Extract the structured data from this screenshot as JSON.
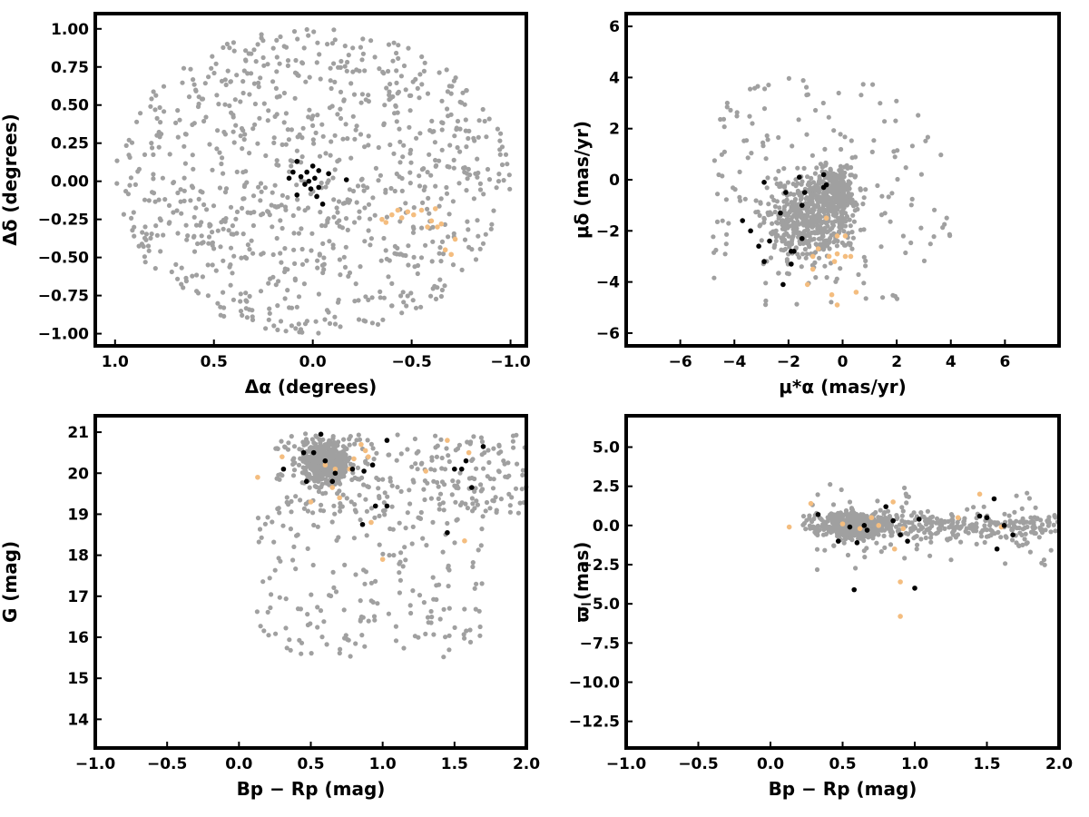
{
  "colors": {
    "field": "#a0a0a0",
    "cluster": "#000000",
    "group2": "#f4bd7f",
    "axes": "#000000"
  },
  "chart_data": [
    {
      "type": "scatter",
      "xlabel": "Δα (degrees)",
      "ylabel": "Δδ (degrees)",
      "xlim": [
        1.1,
        -1.08
      ],
      "ylim": [
        -1.08,
        1.1
      ],
      "xticks": [
        1.0,
        0.5,
        0.0,
        -0.5,
        -1.0
      ],
      "xtick_labels": [
        "1.0",
        "0.5",
        "0.0",
        "−0.5",
        "−1.0"
      ],
      "yticks": [
        -1.0,
        -0.75,
        -0.5,
        -0.25,
        0.0,
        0.25,
        0.5,
        0.75,
        1.0
      ],
      "ytick_labels": [
        "−1.00",
        "−0.75",
        "−0.50",
        "−0.25",
        "0.00",
        "0.25",
        "0.50",
        "0.75",
        "1.00"
      ],
      "field_approx": {
        "count": 900,
        "distribution": "uniform within radius 1.0"
      },
      "cluster_points": [
        [
          0.12,
          0.02
        ],
        [
          0.1,
          0.06
        ],
        [
          0.08,
          0.13
        ],
        [
          0.06,
          0.03
        ],
        [
          0.04,
          -0.02
        ],
        [
          0.03,
          0.06
        ],
        [
          0.02,
          0.0
        ],
        [
          0.01,
          -0.05
        ],
        [
          0.0,
          0.1
        ],
        [
          -0.01,
          0.02
        ],
        [
          -0.02,
          -0.1
        ],
        [
          -0.03,
          0.07
        ],
        [
          -0.03,
          -0.04
        ],
        [
          -0.05,
          -0.15
        ],
        [
          -0.08,
          0.05
        ],
        [
          0.08,
          -0.09
        ],
        [
          -0.17,
          0.01
        ]
      ],
      "group2_points": [
        [
          -0.35,
          -0.25
        ],
        [
          -0.37,
          -0.27
        ],
        [
          -0.4,
          -0.22
        ],
        [
          -0.43,
          -0.19
        ],
        [
          -0.48,
          -0.2
        ],
        [
          -0.51,
          -0.22
        ],
        [
          -0.55,
          -0.19
        ],
        [
          -0.58,
          -0.3
        ],
        [
          -0.6,
          -0.26
        ],
        [
          -0.62,
          -0.18
        ],
        [
          -0.63,
          -0.3
        ],
        [
          -0.65,
          -0.28
        ],
        [
          -0.67,
          -0.45
        ],
        [
          -0.7,
          -0.48
        ],
        [
          -0.72,
          -0.38
        ],
        [
          -0.45,
          -0.24
        ]
      ]
    },
    {
      "type": "scatter",
      "xlabel": "μ*α  (mas/yr)",
      "ylabel": "μδ (mas/yr)",
      "xlim": [
        -8.0,
        8.0
      ],
      "ylim": [
        -6.5,
        6.5
      ],
      "xticks": [
        -6,
        -4,
        -2,
        0,
        2,
        4,
        6
      ],
      "xtick_labels": [
        "−6",
        "−4",
        "−2",
        "0",
        "2",
        "4",
        "6"
      ],
      "yticks": [
        -6,
        -4,
        -2,
        0,
        2,
        4,
        6
      ],
      "ytick_labels": [
        "−6",
        "−4",
        "−2",
        "0",
        "2",
        "4",
        "6"
      ],
      "field_approx": {
        "count": 900,
        "distribution": "fan-shaped cloud centred near (-1.5,-1.5)"
      },
      "cluster_points": [
        [
          -3.7,
          -1.6
        ],
        [
          -3.4,
          -2.0
        ],
        [
          -3.1,
          -2.6
        ],
        [
          -2.9,
          -3.2
        ],
        [
          -2.7,
          -2.4
        ],
        [
          -2.3,
          -1.3
        ],
        [
          -2.2,
          -4.1
        ],
        [
          -2.1,
          -0.5
        ],
        [
          -1.9,
          -3.3
        ],
        [
          -1.8,
          -2.8
        ],
        [
          -1.6,
          0.1
        ],
        [
          -1.5,
          -1.0
        ],
        [
          -1.5,
          -2.3
        ],
        [
          -1.4,
          -0.5
        ],
        [
          -0.7,
          0.2
        ],
        [
          -0.7,
          -0.3
        ],
        [
          -0.6,
          -0.2
        ],
        [
          -2.9,
          -0.1
        ],
        [
          -1.9,
          -2.8
        ]
      ],
      "group2_points": [
        [
          -1.3,
          -4.1
        ],
        [
          -1.1,
          -3.0
        ],
        [
          -0.9,
          -2.7
        ],
        [
          -0.6,
          -1.5
        ],
        [
          -0.5,
          -3.0
        ],
        [
          -0.4,
          -4.5
        ],
        [
          -0.3,
          -3.2
        ],
        [
          -0.2,
          -2.9
        ],
        [
          -0.2,
          -4.9
        ],
        [
          0.1,
          -2.2
        ],
        [
          0.1,
          -3.0
        ],
        [
          0.3,
          -3.0
        ],
        [
          0.5,
          -4.4
        ],
        [
          -1.1,
          -3.5
        ],
        [
          -0.2,
          -2.2
        ]
      ]
    },
    {
      "type": "scatter",
      "xlabel": "Bp − Rp (mag)",
      "ylabel": "G (mag)",
      "xlim": [
        -1.0,
        2.0
      ],
      "ylim": [
        13.3,
        21.4
      ],
      "xticks": [
        -1.0,
        -0.5,
        0.0,
        0.5,
        1.0,
        1.5,
        2.0
      ],
      "xtick_labels": [
        "−1.0",
        "−0.5",
        "0.0",
        "0.5",
        "1.0",
        "1.5",
        "2.0"
      ],
      "yticks": [
        14,
        15,
        16,
        17,
        18,
        19,
        20,
        21
      ],
      "ytick_labels": [
        "14",
        "15",
        "16",
        "17",
        "18",
        "19",
        "20",
        "21"
      ],
      "field_approx": {
        "count": 900,
        "distribution": "dense near (0.6, 20.3), tail toward faint red"
      },
      "cluster_points": [
        [
          0.31,
          20.1
        ],
        [
          0.45,
          20.5
        ],
        [
          0.52,
          20.5
        ],
        [
          0.57,
          20.95
        ],
        [
          0.6,
          20.3
        ],
        [
          0.65,
          19.8
        ],
        [
          0.67,
          20.0
        ],
        [
          0.79,
          20.1
        ],
        [
          0.87,
          20.05
        ],
        [
          0.93,
          20.2
        ],
        [
          0.95,
          19.2
        ],
        [
          1.03,
          19.2
        ],
        [
          1.03,
          20.8
        ],
        [
          1.45,
          18.55
        ],
        [
          1.5,
          20.1
        ],
        [
          1.55,
          20.1
        ],
        [
          1.58,
          20.3
        ],
        [
          1.62,
          19.65
        ],
        [
          1.7,
          20.65
        ],
        [
          0.86,
          18.75
        ],
        [
          0.47,
          19.8
        ]
      ],
      "group2_points": [
        [
          0.13,
          19.9
        ],
        [
          0.3,
          20.4
        ],
        [
          0.5,
          19.3
        ],
        [
          0.6,
          20.2
        ],
        [
          0.65,
          19.65
        ],
        [
          0.7,
          19.4
        ],
        [
          0.77,
          20.1
        ],
        [
          0.8,
          20.35
        ],
        [
          0.85,
          20.7
        ],
        [
          0.88,
          20.55
        ],
        [
          0.9,
          20.4
        ],
        [
          0.92,
          18.8
        ],
        [
          1.0,
          17.9
        ],
        [
          1.3,
          20.05
        ],
        [
          1.45,
          20.8
        ],
        [
          1.57,
          18.35
        ],
        [
          1.6,
          20.5
        ],
        [
          0.67,
          20.1
        ]
      ]
    },
    {
      "type": "scatter",
      "xlabel": "Bp − Rp (mag)",
      "ylabel": "ϖ (mas)",
      "xlim": [
        -1.0,
        2.0
      ],
      "ylim": [
        -14.2,
        7.0
      ],
      "xticks": [
        -1.0,
        -0.5,
        0.0,
        0.5,
        1.0,
        1.5,
        2.0
      ],
      "xtick_labels": [
        "−1.0",
        "−0.5",
        "0.0",
        "0.5",
        "1.0",
        "1.5",
        "2.0"
      ],
      "yticks": [
        -12.5,
        -10.0,
        -7.5,
        -5.0,
        -2.5,
        0.0,
        2.5,
        5.0
      ],
      "ytick_labels": [
        "−12.5",
        "−10.0",
        "−7.5",
        "−5.0",
        "−2.5",
        "0.0",
        "2.5",
        "5.0"
      ],
      "field_approx": {
        "count": 900,
        "distribution": "band around parallax 0 with scatter"
      },
      "cluster_points": [
        [
          0.33,
          0.7
        ],
        [
          0.47,
          -1.0
        ],
        [
          0.55,
          -0.1
        ],
        [
          0.58,
          -4.1
        ],
        [
          0.6,
          -1.1
        ],
        [
          0.65,
          0.0
        ],
        [
          0.67,
          -0.3
        ],
        [
          0.8,
          1.2
        ],
        [
          0.85,
          0.3
        ],
        [
          0.9,
          -0.6
        ],
        [
          0.95,
          -1.0
        ],
        [
          1.0,
          -4.0
        ],
        [
          1.03,
          0.4
        ],
        [
          1.45,
          0.6
        ],
        [
          1.5,
          0.5
        ],
        [
          1.55,
          1.7
        ],
        [
          1.57,
          -1.5
        ],
        [
          1.62,
          0.0
        ],
        [
          1.68,
          -0.6
        ]
      ],
      "group2_points": [
        [
          0.13,
          -0.1
        ],
        [
          0.28,
          1.4
        ],
        [
          0.5,
          0.1
        ],
        [
          0.62,
          -0.2
        ],
        [
          0.7,
          0.5
        ],
        [
          0.75,
          0.0
        ],
        [
          0.85,
          1.5
        ],
        [
          0.86,
          -1.5
        ],
        [
          0.9,
          -3.6
        ],
        [
          0.9,
          -5.8
        ],
        [
          0.92,
          -0.2
        ],
        [
          1.3,
          0.5
        ],
        [
          1.45,
          2.0
        ],
        [
          1.6,
          -0.1
        ]
      ]
    }
  ]
}
